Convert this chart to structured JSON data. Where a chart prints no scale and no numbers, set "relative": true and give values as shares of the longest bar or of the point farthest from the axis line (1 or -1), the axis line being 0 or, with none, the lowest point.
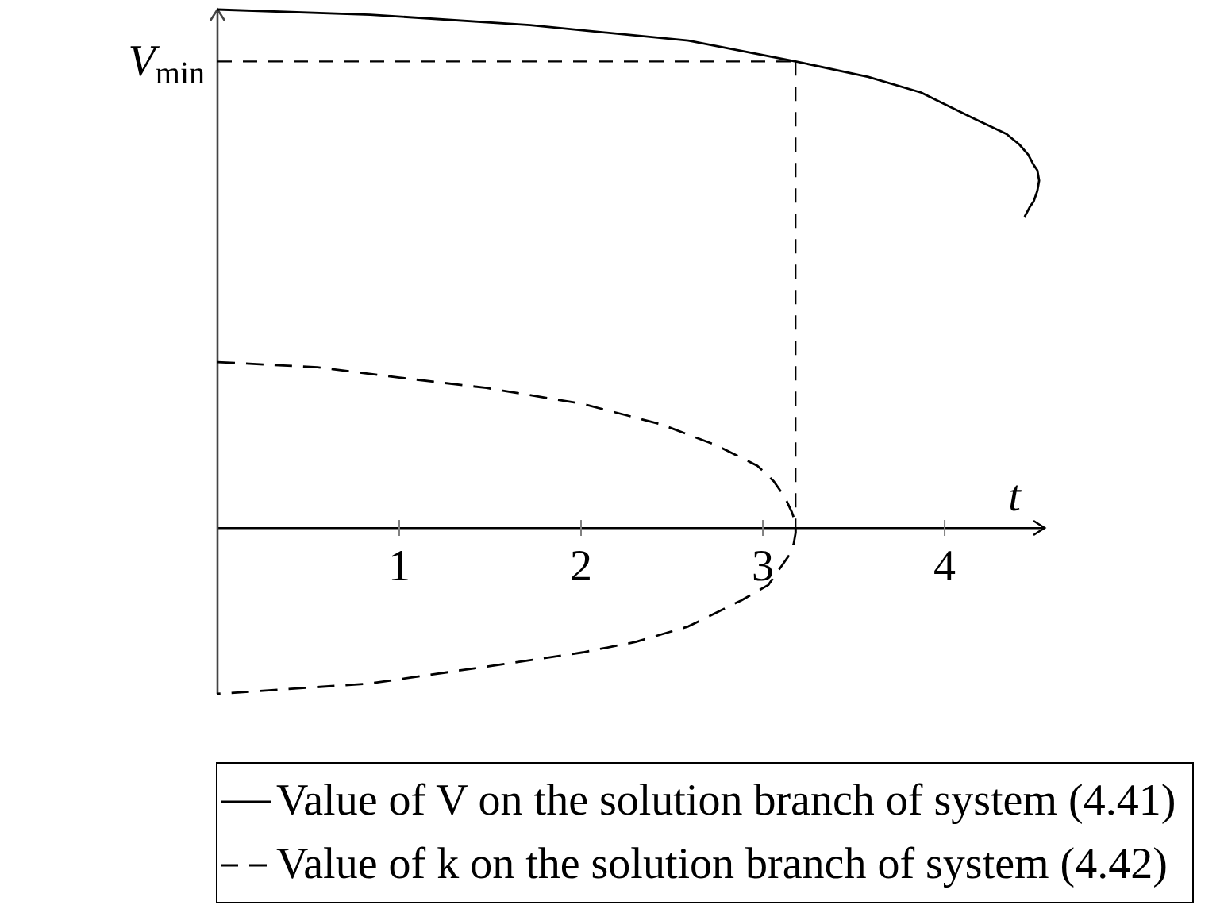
{
  "chart_data": {
    "type": "line",
    "relative": true,
    "xlabel": "t",
    "xlim": [
      0,
      4.55
    ],
    "xticks": [
      1,
      2,
      3,
      4
    ],
    "marker": "none",
    "legend": "bottom",
    "series": [
      {
        "name": "Value of V on the solution branch of system (4.41)",
        "color": "#000000",
        "line_style": "solid",
        "x": [
          0,
          0.84,
          1.72,
          2.59,
          3.18,
          3.58,
          3.87,
          4.16,
          4.34,
          4.41,
          4.46,
          4.49,
          4.51,
          4.52,
          4.51,
          4.49,
          4.47,
          4.44
        ],
        "values": [
          1,
          0.99,
          0.97,
          0.94,
          0.9,
          0.87,
          0.84,
          0.79,
          0.76,
          0.74,
          0.72,
          0.7,
          0.69,
          0.67,
          0.65,
          0.63,
          0.62,
          0.6
        ]
      },
      {
        "name": "Value of k on the solution branch of system (4.42)",
        "color": "#000000",
        "line_style": "dashed",
        "x": [
          0,
          0.55,
          1,
          1.48,
          2,
          2.44,
          2.74,
          2.97,
          3.06,
          3.12,
          3.16,
          3.18,
          3.18,
          3.17,
          3.15,
          3.11,
          3.03,
          2.88,
          2.59,
          2.3,
          2.01,
          1.43,
          0.84,
          0
        ],
        "values": [
          0.32,
          0.31,
          0.29,
          0.27,
          0.24,
          0.2,
          0.16,
          0.12,
          0.09,
          0.06,
          0.03,
          0.01,
          -0.01,
          -0.03,
          -0.05,
          -0.07,
          -0.11,
          -0.14,
          -0.19,
          -0.22,
          -0.24,
          -0.27,
          -0.3,
          -0.32
        ]
      }
    ],
    "ref_lines": [
      {
        "axis": "y",
        "value": 0.9,
        "label": "V$_{min}$",
        "line_style": "dashed"
      },
      {
        "axis": "x",
        "value": 3.18,
        "line_style": "dashed"
      }
    ]
  }
}
